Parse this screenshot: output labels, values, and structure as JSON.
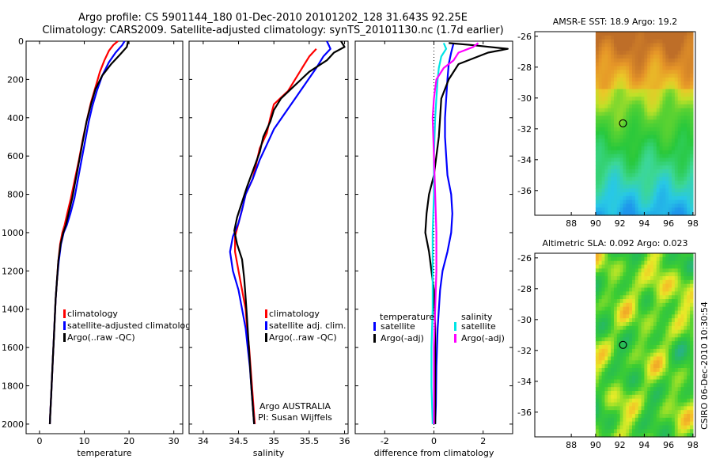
{
  "title": {
    "line1": "Argo profile: CS 5901144_180 01-Dec-2010 20101202_128 31.643S 92.25E",
    "line2": "Climatology: CARS2009. Satellite-adjusted climatology: synTS_20101130.nc (1.7d earlier)"
  },
  "credit": {
    "program": "Argo AUSTRALIA",
    "pi": "PI: Susan Wijffels",
    "stamp": "CSIRO 06-Dec-2010 10:30:54"
  },
  "colors": {
    "climatology": "#ff0000",
    "satellite": "#0000ff",
    "argo": "#000000",
    "salinity_satellite": "#00e5e5",
    "salinity_argo": "#ff00ff",
    "marker": "#000000"
  },
  "chart_data": [
    {
      "type": "line",
      "id": "temperature",
      "xlabel": "temperature",
      "xlim": [
        -3,
        32
      ],
      "xticks": [
        0,
        10,
        20,
        30
      ],
      "ylim": [
        0,
        2050
      ],
      "yticks": [
        0,
        200,
        400,
        600,
        800,
        1000,
        1200,
        1400,
        1600,
        1800,
        2000
      ],
      "y_reversed": true,
      "series": [
        {
          "key": "climatology",
          "legend": "climatology",
          "points": [
            [
              17.5,
              0
            ],
            [
              16.5,
              20
            ],
            [
              15.5,
              50
            ],
            [
              14.5,
              100
            ],
            [
              13.5,
              160
            ],
            [
              12.5,
              240
            ],
            [
              11.5,
              320
            ],
            [
              10.5,
              420
            ],
            [
              9.6,
              520
            ],
            [
              8.8,
              620
            ],
            [
              7.9,
              720
            ],
            [
              7.0,
              820
            ],
            [
              6.2,
              900
            ],
            [
              5.6,
              960
            ],
            [
              5.1,
              1000
            ],
            [
              4.6,
              1060
            ],
            [
              4.2,
              1150
            ],
            [
              3.9,
              1250
            ],
            [
              3.6,
              1350
            ],
            [
              3.4,
              1450
            ],
            [
              3.2,
              1550
            ],
            [
              3.0,
              1650
            ],
            [
              2.8,
              1750
            ],
            [
              2.6,
              1850
            ],
            [
              2.4,
              1950
            ],
            [
              2.3,
              2000
            ]
          ]
        },
        {
          "key": "satellite",
          "legend": "satellite-adjusted climatology",
          "points": [
            [
              19.0,
              0
            ],
            [
              18.5,
              20
            ],
            [
              17.0,
              60
            ],
            [
              15.5,
              110
            ],
            [
              14.0,
              180
            ],
            [
              12.8,
              260
            ],
            [
              11.8,
              340
            ],
            [
              11.0,
              420
            ],
            [
              10.2,
              520
            ],
            [
              9.4,
              620
            ],
            [
              8.6,
              720
            ],
            [
              7.8,
              820
            ],
            [
              6.9,
              900
            ],
            [
              6.1,
              960
            ],
            [
              5.4,
              1000
            ],
            [
              4.8,
              1060
            ],
            [
              4.3,
              1150
            ],
            [
              3.9,
              1250
            ],
            [
              3.6,
              1350
            ],
            [
              3.4,
              1450
            ],
            [
              3.2,
              1550
            ],
            [
              3.0,
              1650
            ],
            [
              2.8,
              1750
            ],
            [
              2.6,
              1850
            ],
            [
              2.4,
              1950
            ],
            [
              2.3,
              2000
            ]
          ]
        },
        {
          "key": "argo",
          "legend": "Argo(..raw -QC)",
          "points": [
            [
              19.8,
              0
            ],
            [
              19.5,
              30
            ],
            [
              18.0,
              70
            ],
            [
              16.0,
              120
            ],
            [
              14.0,
              180
            ],
            [
              12.5,
              250
            ],
            [
              11.5,
              330
            ],
            [
              10.5,
              420
            ],
            [
              9.7,
              520
            ],
            [
              8.9,
              620
            ],
            [
              8.1,
              720
            ],
            [
              7.3,
              820
            ],
            [
              6.5,
              900
            ],
            [
              5.9,
              960
            ],
            [
              5.3,
              1000
            ],
            [
              4.7,
              1060
            ],
            [
              4.2,
              1150
            ],
            [
              3.9,
              1250
            ],
            [
              3.6,
              1350
            ],
            [
              3.4,
              1450
            ],
            [
              3.2,
              1550
            ],
            [
              3.0,
              1650
            ],
            [
              2.8,
              1750
            ],
            [
              2.6,
              1850
            ],
            [
              2.4,
              1950
            ],
            [
              2.3,
              2000
            ]
          ]
        }
      ]
    },
    {
      "type": "line",
      "id": "salinity",
      "xlabel": "salinity",
      "xlim": [
        33.8,
        36.05
      ],
      "xticks": [
        34,
        34.5,
        35,
        35.5,
        36
      ],
      "ylim": [
        0,
        2050
      ],
      "y_reversed": true,
      "series": [
        {
          "key": "climatology",
          "legend": "climatology",
          "points": [
            [
              35.6,
              40
            ],
            [
              35.5,
              80
            ],
            [
              35.4,
              140
            ],
            [
              35.3,
              200
            ],
            [
              35.2,
              260
            ],
            [
              35.0,
              330
            ],
            [
              34.95,
              400
            ],
            [
              34.9,
              480
            ],
            [
              34.8,
              560
            ],
            [
              34.75,
              640
            ],
            [
              34.7,
              720
            ],
            [
              34.6,
              800
            ],
            [
              34.55,
              880
            ],
            [
              34.5,
              950
            ],
            [
              34.45,
              1020
            ],
            [
              34.45,
              1100
            ],
            [
              34.5,
              1200
            ],
            [
              34.55,
              1300
            ],
            [
              34.6,
              1400
            ],
            [
              34.62,
              1500
            ],
            [
              34.65,
              1600
            ],
            [
              34.67,
              1700
            ],
            [
              34.69,
              1800
            ],
            [
              34.71,
              1900
            ],
            [
              34.73,
              2000
            ]
          ]
        },
        {
          "key": "satellite",
          "legend": "satellite adj. clim.",
          "points": [
            [
              35.75,
              0
            ],
            [
              35.8,
              40
            ],
            [
              35.7,
              80
            ],
            [
              35.6,
              140
            ],
            [
              35.45,
              220
            ],
            [
              35.3,
              300
            ],
            [
              35.15,
              380
            ],
            [
              35.0,
              460
            ],
            [
              34.9,
              540
            ],
            [
              34.8,
              620
            ],
            [
              34.7,
              720
            ],
            [
              34.6,
              800
            ],
            [
              34.55,
              880
            ],
            [
              34.5,
              950
            ],
            [
              34.42,
              1020
            ],
            [
              34.38,
              1100
            ],
            [
              34.42,
              1200
            ],
            [
              34.5,
              1300
            ],
            [
              34.55,
              1400
            ],
            [
              34.6,
              1500
            ],
            [
              34.63,
              1600
            ],
            [
              34.66,
              1700
            ],
            [
              34.68,
              1800
            ],
            [
              34.7,
              1900
            ],
            [
              34.72,
              2000
            ]
          ]
        },
        {
          "key": "argo",
          "legend": "Argo(..raw -QC)",
          "points": [
            [
              35.95,
              0
            ],
            [
              36.0,
              30
            ],
            [
              35.85,
              60
            ],
            [
              35.75,
              100
            ],
            [
              35.5,
              160
            ],
            [
              35.3,
              230
            ],
            [
              35.1,
              300
            ],
            [
              35.0,
              360
            ],
            [
              34.95,
              420
            ],
            [
              34.85,
              500
            ],
            [
              34.8,
              580
            ],
            [
              34.7,
              680
            ],
            [
              34.62,
              760
            ],
            [
              34.55,
              840
            ],
            [
              34.48,
              920
            ],
            [
              34.44,
              990
            ],
            [
              34.48,
              1060
            ],
            [
              34.55,
              1140
            ],
            [
              34.58,
              1240
            ],
            [
              34.6,
              1340
            ],
            [
              34.62,
              1450
            ],
            [
              34.64,
              1560
            ],
            [
              34.66,
              1680
            ],
            [
              34.68,
              1800
            ],
            [
              34.7,
              1900
            ],
            [
              34.72,
              2000
            ]
          ]
        }
      ]
    },
    {
      "type": "line",
      "id": "difference",
      "xlabel": "difference from climatology",
      "xlim": [
        -3.2,
        3.2
      ],
      "xticks": [
        -2,
        0,
        2
      ],
      "ylim": [
        0,
        2050
      ],
      "y_reversed": true,
      "legend_titles": {
        "temperature": "temperature",
        "salinity": "salinity"
      },
      "series": [
        {
          "key": "satellite",
          "legend": "satellite",
          "group": "temperature",
          "points": [
            [
              0.8,
              10
            ],
            [
              0.7,
              60
            ],
            [
              0.6,
              120
            ],
            [
              0.55,
              200
            ],
            [
              0.5,
              300
            ],
            [
              0.45,
              400
            ],
            [
              0.45,
              500
            ],
            [
              0.5,
              600
            ],
            [
              0.55,
              700
            ],
            [
              0.7,
              800
            ],
            [
              0.75,
              900
            ],
            [
              0.7,
              1000
            ],
            [
              0.55,
              1100
            ],
            [
              0.35,
              1200
            ],
            [
              0.25,
              1300
            ],
            [
              0.15,
              1500
            ],
            [
              0.1,
              1700
            ],
            [
              0.08,
              1900
            ],
            [
              0.05,
              2000
            ]
          ]
        },
        {
          "key": "argo",
          "legend": "Argo(-adj)",
          "group": "temperature",
          "points": [
            [
              0.6,
              10
            ],
            [
              1.5,
              20
            ],
            [
              3.0,
              40
            ],
            [
              2.2,
              60
            ],
            [
              1.0,
              120
            ],
            [
              0.6,
              200
            ],
            [
              0.3,
              300
            ],
            [
              0.25,
              400
            ],
            [
              0.2,
              500
            ],
            [
              0.1,
              600
            ],
            [
              0.0,
              700
            ],
            [
              -0.2,
              800
            ],
            [
              -0.3,
              900
            ],
            [
              -0.35,
              1000
            ],
            [
              -0.2,
              1100
            ],
            [
              -0.1,
              1200
            ],
            [
              0.0,
              1300
            ],
            [
              0.05,
              1500
            ],
            [
              0.05,
              1700
            ],
            [
              0.05,
              1900
            ],
            [
              0.05,
              2000
            ]
          ]
        },
        {
          "key": "salinity_satellite",
          "legend": "satellite",
          "group": "salinity",
          "points": [
            [
              0.4,
              10
            ],
            [
              0.5,
              40
            ],
            [
              0.3,
              80
            ],
            [
              0.2,
              140
            ],
            [
              0.15,
              200
            ],
            [
              0.1,
              300
            ],
            [
              0.05,
              400
            ],
            [
              0.0,
              600
            ],
            [
              0.0,
              800
            ],
            [
              -0.05,
              1000
            ],
            [
              -0.05,
              1200
            ],
            [
              -0.05,
              1400
            ],
            [
              -0.1,
              1600
            ],
            [
              -0.1,
              1800
            ],
            [
              -0.05,
              2000
            ]
          ]
        },
        {
          "key": "salinity_argo",
          "legend": "Argo(-adj)",
          "group": "salinity",
          "points": [
            [
              1.8,
              10
            ],
            [
              1.6,
              30
            ],
            [
              1.0,
              60
            ],
            [
              0.8,
              100
            ],
            [
              0.4,
              140
            ],
            [
              0.1,
              200
            ],
            [
              0.0,
              300
            ],
            [
              -0.05,
              400
            ],
            [
              0.0,
              600
            ],
            [
              0.05,
              800
            ],
            [
              0.1,
              1000
            ],
            [
              0.1,
              1200
            ],
            [
              0.05,
              1400
            ],
            [
              0.0,
              1600
            ],
            [
              0.0,
              1800
            ],
            [
              0.0,
              2000
            ]
          ]
        }
      ]
    },
    {
      "type": "heatmap",
      "id": "sst_map",
      "title": "AMSR-E SST: 18.9 Argo: 19.2",
      "xlim": [
        85,
        98.2
      ],
      "ylim": [
        -37.6,
        -25.7
      ],
      "xticks": [
        88,
        90,
        92,
        94,
        96,
        98
      ],
      "yticks": [
        -26,
        -28,
        -30,
        -32,
        -34,
        -36
      ],
      "data_lon_range": [
        90,
        98
      ],
      "palette": "orange-to-blue",
      "marker": {
        "lon": 92.25,
        "lat": -31.64
      }
    },
    {
      "type": "heatmap",
      "id": "sla_map",
      "title": "Altimetric SLA: 0.092 Argo: 0.023",
      "xlim": [
        85,
        98.2
      ],
      "ylim": [
        -37.6,
        -25.7
      ],
      "xticks": [
        88,
        90,
        92,
        94,
        96,
        98
      ],
      "yticks": [
        -26,
        -28,
        -30,
        -32,
        -34,
        -36
      ],
      "data_lon_range": [
        90,
        98
      ],
      "palette": "green-yellow-orange",
      "marker": {
        "lon": 92.25,
        "lat": -31.64
      }
    }
  ]
}
